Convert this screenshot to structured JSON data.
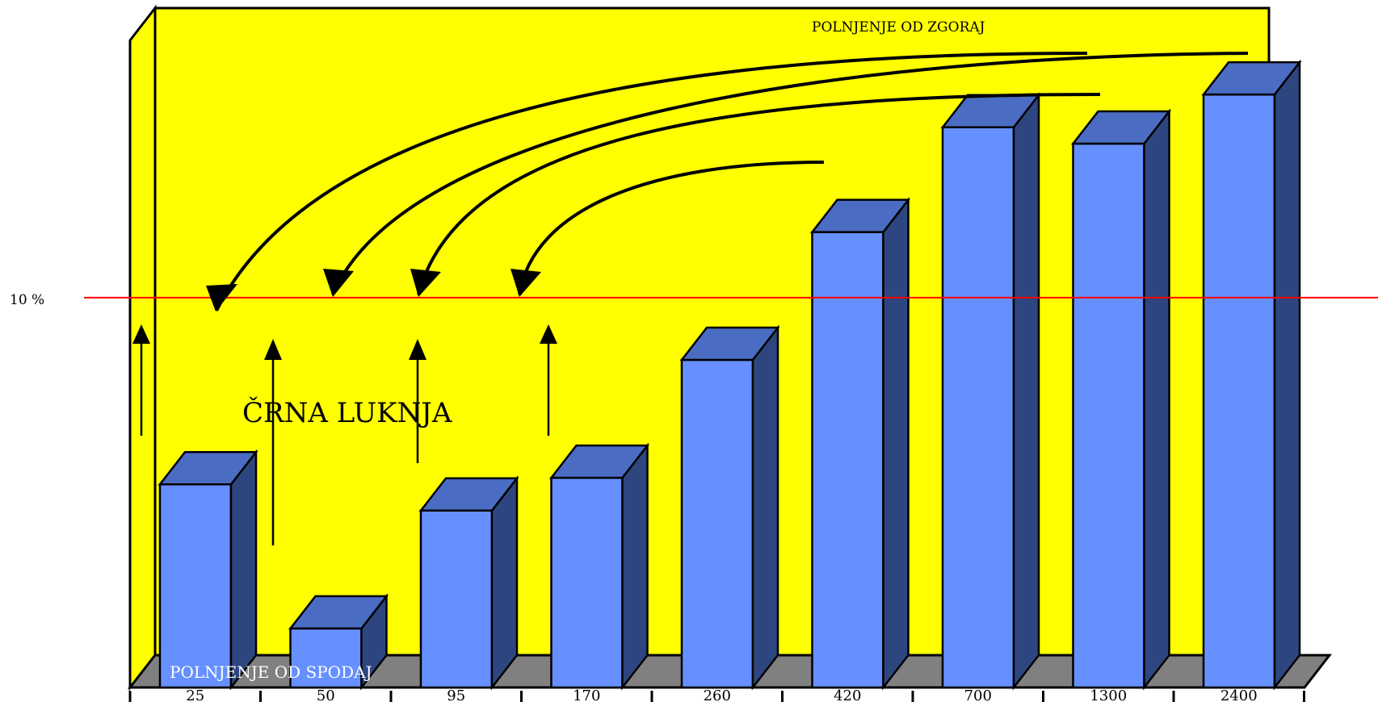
{
  "chart_data": {
    "type": "bar",
    "categories": [
      "25",
      "50",
      "95",
      "170",
      "260",
      "420",
      "700",
      "1300",
      "2400"
    ],
    "values": [
      6.2,
      1.8,
      5.4,
      6.4,
      10.0,
      13.9,
      17.1,
      16.6,
      18.1
    ],
    "ylim": [
      0,
      20
    ],
    "reference_line": {
      "label": "10 %",
      "value": 10,
      "color": "#ff0000"
    },
    "annotations": {
      "top": "POLNJENJE OD ZGORAJ",
      "middle": "ČRNA LUKNJA",
      "bottom": "POLNJENJE OD SPODAJ"
    },
    "colors": {
      "background": "#ffff00",
      "floor": "#808080",
      "bar_front": "#6690ff",
      "bar_top": "#4a6cc2",
      "bar_side": "#2e4680",
      "reference": "#ff0000"
    },
    "grid": false,
    "legend": "none"
  }
}
